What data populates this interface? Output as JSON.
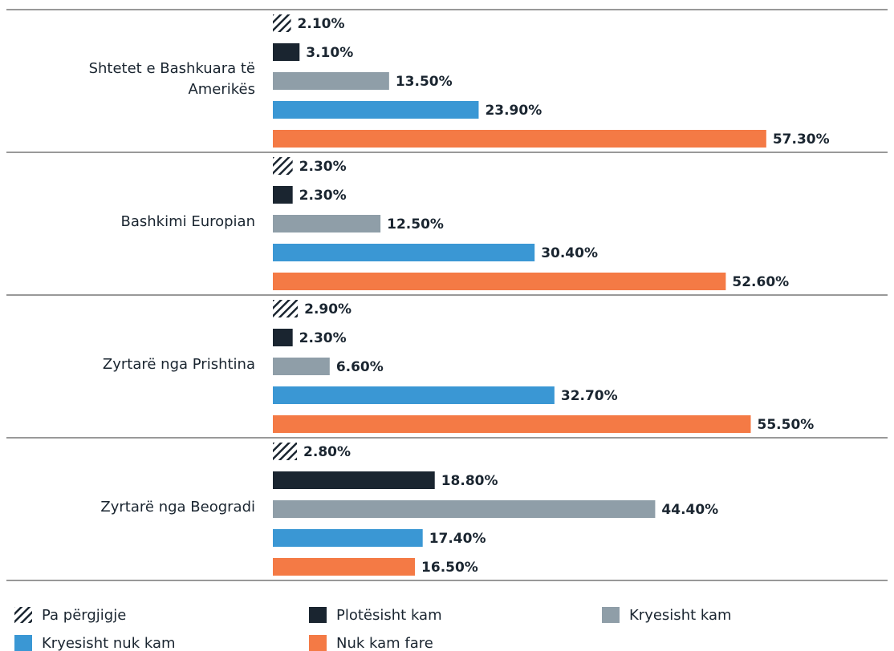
{
  "chart_data": {
    "type": "hbar",
    "categories": [
      "Shtetet e Bashkuara të Amerikës",
      "Bashkimi Europian",
      "Zyrtarë nga Prishtina",
      "Zyrtarë nga Beogradi"
    ],
    "series": [
      {
        "name": "Pa përgjigje",
        "color": "#1a2530",
        "fill": "hatch",
        "values": [
          2.1,
          2.3,
          2.9,
          2.8
        ],
        "value_labels": [
          "2.10%",
          "2.30%",
          "2.90%",
          "2.80%"
        ]
      },
      {
        "name": "Plotësisht kam",
        "color": "#1a2530",
        "values": [
          3.1,
          2.3,
          2.3,
          18.8
        ],
        "value_labels": [
          "3.10%",
          "2.30%",
          "2.30%",
          "18.80%"
        ]
      },
      {
        "name": "Kryesisht kam",
        "color": "#8f9ea8",
        "values": [
          13.5,
          12.5,
          6.6,
          44.4
        ],
        "value_labels": [
          "13.50%",
          "12.50%",
          "6.60%",
          "44.40%"
        ]
      },
      {
        "name": "Kryesisht nuk kam",
        "color": "#3a97d4",
        "values": [
          23.9,
          30.4,
          32.7,
          17.4
        ],
        "value_labels": [
          "23.90%",
          "30.40%",
          "32.70%",
          "17.40%"
        ]
      },
      {
        "name": "Nuk kam fare",
        "color": "#f47a45",
        "values": [
          57.3,
          52.6,
          55.5,
          16.5
        ],
        "value_labels": [
          "57.30%",
          "52.60%",
          "55.50%",
          "16.50%"
        ]
      }
    ]
  }
}
